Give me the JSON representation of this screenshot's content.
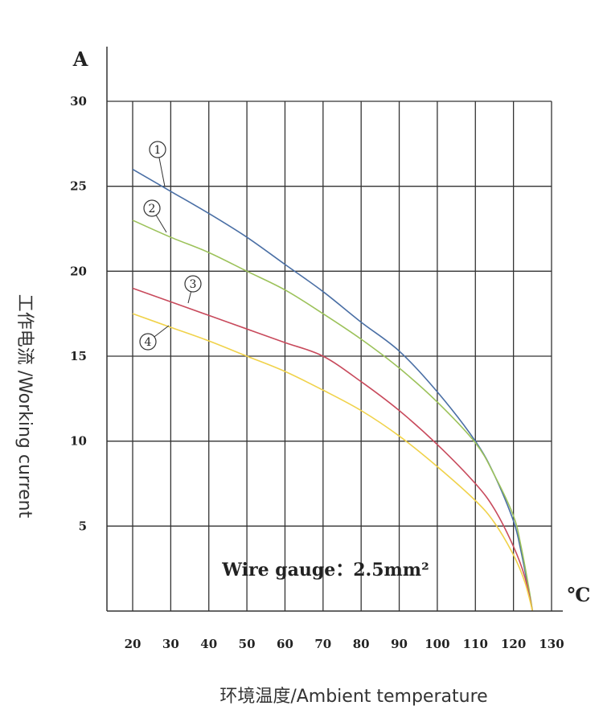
{
  "chart_data": {
    "type": "line",
    "title": "",
    "ylabel": "工作电流 /Working current",
    "xlabel": "环境温度/Ambient temperature",
    "y_unit": "A",
    "x_unit": "℃",
    "annotation": "Wire gauge：2.5mm²",
    "x_ticks": [
      "20",
      "30",
      "40",
      "50",
      "60",
      "70",
      "80",
      "90",
      "100",
      "110",
      "120",
      "130"
    ],
    "y_ticks": [
      "5",
      "10",
      "15",
      "20",
      "25",
      "30"
    ],
    "xlim": [
      20,
      130
    ],
    "ylim": [
      0,
      30
    ],
    "series": [
      {
        "name": "1",
        "color": "#4a6fa5",
        "points": [
          [
            20,
            26
          ],
          [
            30,
            24.7
          ],
          [
            40,
            23.4
          ],
          [
            50,
            22.0
          ],
          [
            60,
            20.4
          ],
          [
            70,
            18.8
          ],
          [
            80,
            17.0
          ],
          [
            90,
            15.3
          ],
          [
            100,
            12.9
          ],
          [
            110,
            10.0
          ],
          [
            115,
            8.0
          ],
          [
            120,
            5.3
          ],
          [
            122,
            3.5
          ],
          [
            124,
            1.2
          ],
          [
            125,
            0
          ]
        ]
      },
      {
        "name": "2",
        "color": "#9cc25a",
        "points": [
          [
            20,
            23
          ],
          [
            30,
            22.0
          ],
          [
            40,
            21.1
          ],
          [
            50,
            20.0
          ],
          [
            60,
            18.9
          ],
          [
            70,
            17.5
          ],
          [
            80,
            16.0
          ],
          [
            90,
            14.3
          ],
          [
            100,
            12.3
          ],
          [
            110,
            9.9
          ],
          [
            115,
            8.0
          ],
          [
            120,
            5.6
          ],
          [
            122,
            3.8
          ],
          [
            124,
            1.4
          ],
          [
            125,
            0
          ]
        ]
      },
      {
        "name": "3",
        "color": "#c84a5c",
        "points": [
          [
            20,
            19
          ],
          [
            30,
            18.2
          ],
          [
            40,
            17.4
          ],
          [
            50,
            16.6
          ],
          [
            60,
            15.8
          ],
          [
            70,
            15.0
          ],
          [
            80,
            13.5
          ],
          [
            90,
            11.8
          ],
          [
            100,
            9.8
          ],
          [
            110,
            7.5
          ],
          [
            115,
            6.0
          ],
          [
            120,
            3.8
          ],
          [
            123,
            2.0
          ],
          [
            125,
            0
          ]
        ]
      },
      {
        "name": "4",
        "color": "#f0d24a",
        "points": [
          [
            20,
            17.5
          ],
          [
            30,
            16.7
          ],
          [
            40,
            15.9
          ],
          [
            50,
            15.0
          ],
          [
            60,
            14.1
          ],
          [
            70,
            13.0
          ],
          [
            80,
            11.8
          ],
          [
            90,
            10.3
          ],
          [
            100,
            8.5
          ],
          [
            110,
            6.5
          ],
          [
            115,
            5.2
          ],
          [
            120,
            3.3
          ],
          [
            123,
            1.7
          ],
          [
            125,
            0
          ]
        ]
      }
    ]
  }
}
